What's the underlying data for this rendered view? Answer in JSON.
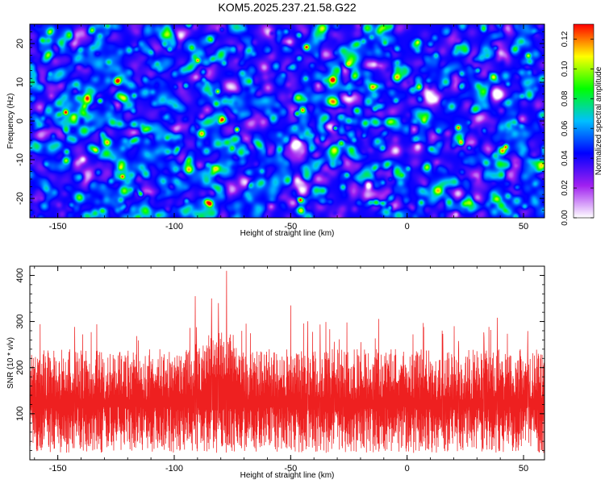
{
  "figure_title": "KOM5.2025.237.21.58.G22",
  "chart_data": [
    {
      "type": "heatmap",
      "panel": "spectrogram",
      "xlabel": "Height of straight line (km)",
      "ylabel": "Frequency (Hz)",
      "xlim": [
        -162,
        59
      ],
      "ylim": [
        -25,
        25
      ],
      "xticks": [
        -150,
        -100,
        -50,
        0,
        50
      ],
      "yticks": [
        -20,
        -10,
        0,
        10,
        20
      ],
      "colorbar": {
        "label": "Normalized spectral amplitude",
        "range": [
          0,
          0.13
        ],
        "ticks": [
          0,
          0.02,
          0.04,
          0.06,
          0.08,
          0.1,
          0.12
        ],
        "tick_labels": [
          "0.00",
          "0.02",
          "0.04",
          "0.06",
          "0.08",
          "0.10",
          "0.12"
        ],
        "colormap": [
          "#ffffff",
          "#a020f0",
          "#0000ff",
          "#00c0ff",
          "#00ff00",
          "#ffff00",
          "#ff0000"
        ]
      },
      "notes": "dense random speckle field; amplitudes mostly 0.02-0.06 with sparse peaks up to ~0.12"
    },
    {
      "type": "line",
      "panel": "snr",
      "xlabel": "Height of straight line (km)",
      "ylabel": "SNR (10 * v/v)",
      "xlim": [
        -162,
        59
      ],
      "ylim": [
        0,
        420
      ],
      "xticks": [
        -150,
        -100,
        -50,
        0,
        50
      ],
      "yticks": [
        100,
        200,
        300,
        400
      ],
      "line_color": "#ee2020",
      "series": [
        {
          "name": "SNR",
          "baseline": 110,
          "typical_max": 240,
          "peak": {
            "x": -77.5,
            "y": 410
          },
          "secondary_peaks": [
            {
              "x": -91,
              "y": 355
            },
            {
              "x": -84,
              "y": 350
            },
            {
              "x": -81,
              "y": 340
            },
            {
              "x": -50,
              "y": 335
            }
          ]
        }
      ]
    }
  ]
}
